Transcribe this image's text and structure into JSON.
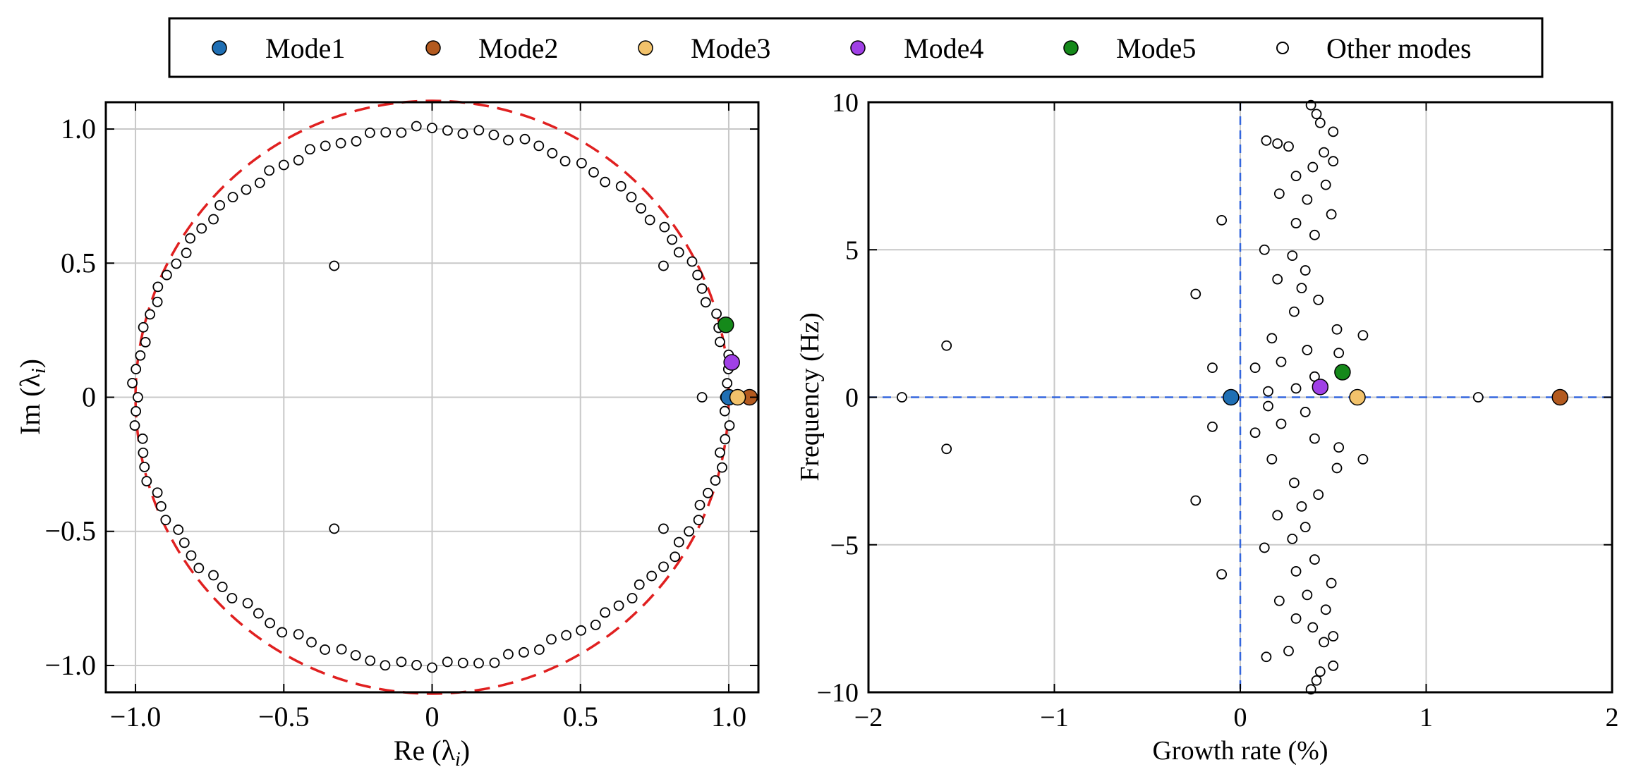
{
  "legend": {
    "items": [
      {
        "label": "Mode1",
        "color": "#1f6fb4"
      },
      {
        "label": "Mode2",
        "color": "#b35a1f"
      },
      {
        "label": "Mode3",
        "color": "#f2c26b"
      },
      {
        "label": "Mode4",
        "color": "#a040e6"
      },
      {
        "label": "Mode5",
        "color": "#15891a"
      },
      {
        "label": "Other modes",
        "color": "#ffffff"
      }
    ]
  },
  "chart_data": [
    {
      "type": "scatter",
      "title": "",
      "xlabel": "Re (λ",
      "xlabel_sub": "i",
      "xlabel_close": ")",
      "ylabel": "Im (λ",
      "ylabel_sub": "i",
      "ylabel_close": ")",
      "xlim": [
        -1.1,
        1.1
      ],
      "ylim": [
        -1.1,
        1.1
      ],
      "xticks": [
        -1.0,
        -0.5,
        0.0,
        0.5,
        1.0
      ],
      "xtick_labels": [
        "−1.0",
        "−0.5",
        "0",
        "0.5",
        "1.0"
      ],
      "yticks": [
        -1.0,
        -0.5,
        0.0,
        0.5,
        1.0
      ],
      "ytick_labels": [
        "−1.0",
        "−0.5",
        "0",
        "0.5",
        "1.0"
      ],
      "grid": true,
      "unit_circle": {
        "radius": 1.0,
        "color": "#e02020",
        "style": "dashed"
      },
      "other_modes_circle_angles_deg": [
        0,
        3,
        6,
        9,
        12,
        15,
        18,
        21,
        24,
        27,
        30,
        33,
        36,
        39,
        42,
        45,
        48,
        51,
        54,
        57,
        60,
        63,
        66,
        69,
        72,
        75,
        78,
        81,
        84,
        87,
        90,
        93,
        96,
        99,
        102,
        105,
        108,
        111,
        114,
        117,
        120,
        123,
        126,
        129,
        132,
        135,
        138,
        141,
        144,
        147,
        150,
        153,
        156,
        159,
        162,
        165,
        168,
        171,
        174,
        177,
        180,
        183,
        186,
        189,
        192,
        195,
        198,
        201,
        204,
        207,
        210,
        213,
        216,
        219,
        222,
        225,
        228,
        231,
        234,
        237,
        240,
        243,
        246,
        249,
        252,
        255,
        258,
        261,
        264,
        267,
        270,
        273,
        276,
        279,
        282,
        285,
        288,
        291,
        294,
        297,
        300,
        303,
        306,
        309,
        312,
        315,
        318,
        321,
        324,
        327,
        330,
        333,
        336,
        339,
        342,
        345,
        348,
        351,
        354,
        357
      ],
      "other_modes_extra": [
        {
          "x": -0.33,
          "y": 0.49
        },
        {
          "x": -0.33,
          "y": -0.49
        },
        {
          "x": 0.78,
          "y": 0.49
        },
        {
          "x": 0.78,
          "y": -0.49
        },
        {
          "x": 0.91,
          "y": 0.0
        }
      ],
      "series": [
        {
          "name": "Mode1",
          "x": [
            1.0
          ],
          "y": [
            0.0
          ]
        },
        {
          "name": "Mode2",
          "x": [
            1.07
          ],
          "y": [
            0.0
          ]
        },
        {
          "name": "Mode3",
          "x": [
            1.03
          ],
          "y": [
            0.0
          ]
        },
        {
          "name": "Mode4",
          "x": [
            1.01
          ],
          "y": [
            0.13
          ]
        },
        {
          "name": "Mode5",
          "x": [
            0.99
          ],
          "y": [
            0.27
          ]
        }
      ]
    },
    {
      "type": "scatter",
      "title": "",
      "xlabel": "Growth rate (%)",
      "ylabel": "Frequency (Hz)",
      "xlim": [
        -2,
        2
      ],
      "ylim": [
        -10,
        10
      ],
      "xticks": [
        -2,
        -1,
        0,
        1,
        2
      ],
      "xtick_labels": [
        "−2",
        "−1",
        "0",
        "1",
        "2"
      ],
      "yticks": [
        -10,
        -5,
        0,
        5,
        10
      ],
      "ytick_labels": [
        "−10",
        "−5",
        "0",
        "5",
        "10"
      ],
      "grid": true,
      "reference_lines": {
        "x": 0,
        "y": 0,
        "color": "#3366dd",
        "style": "dashed"
      },
      "other_modes": [
        {
          "x": -1.82,
          "y": 0.0
        },
        {
          "x": -1.58,
          "y": 1.75
        },
        {
          "x": -1.58,
          "y": -1.75
        },
        {
          "x": -0.24,
          "y": 3.5
        },
        {
          "x": -0.24,
          "y": -3.5
        },
        {
          "x": -0.1,
          "y": 6.0
        },
        {
          "x": -0.1,
          "y": -6.0
        },
        {
          "x": -0.15,
          "y": 1.0
        },
        {
          "x": -0.15,
          "y": -1.0
        },
        {
          "x": 1.28,
          "y": 0.0
        },
        {
          "x": 0.66,
          "y": 2.1
        },
        {
          "x": 0.66,
          "y": -2.1
        },
        {
          "x": 0.38,
          "y": 9.9
        },
        {
          "x": 0.41,
          "y": 9.6
        },
        {
          "x": 0.43,
          "y": 9.3
        },
        {
          "x": 0.5,
          "y": 9.0
        },
        {
          "x": 0.14,
          "y": 8.7
        },
        {
          "x": 0.2,
          "y": 8.6
        },
        {
          "x": 0.26,
          "y": 8.5
        },
        {
          "x": 0.45,
          "y": 8.3
        },
        {
          "x": 0.5,
          "y": 8.0
        },
        {
          "x": 0.39,
          "y": 7.8
        },
        {
          "x": 0.3,
          "y": 7.5
        },
        {
          "x": 0.46,
          "y": 7.2
        },
        {
          "x": 0.21,
          "y": 6.9
        },
        {
          "x": 0.36,
          "y": 6.7
        },
        {
          "x": 0.49,
          "y": 6.2
        },
        {
          "x": 0.3,
          "y": 5.9
        },
        {
          "x": 0.13,
          "y": 5.0
        },
        {
          "x": 0.4,
          "y": 5.5
        },
        {
          "x": 0.28,
          "y": 4.8
        },
        {
          "x": 0.35,
          "y": 4.3
        },
        {
          "x": 0.2,
          "y": 4.0
        },
        {
          "x": 0.33,
          "y": 3.7
        },
        {
          "x": 0.42,
          "y": 3.3
        },
        {
          "x": 0.29,
          "y": 2.9
        },
        {
          "x": 0.52,
          "y": 2.3
        },
        {
          "x": 0.17,
          "y": 2.0
        },
        {
          "x": 0.36,
          "y": 1.6
        },
        {
          "x": 0.53,
          "y": 1.5
        },
        {
          "x": 0.22,
          "y": 1.2
        },
        {
          "x": 0.08,
          "y": 1.0
        },
        {
          "x": 0.4,
          "y": 0.7
        },
        {
          "x": 0.15,
          "y": 0.2
        },
        {
          "x": 0.3,
          "y": 0.3
        },
        {
          "x": 0.15,
          "y": -0.3
        },
        {
          "x": 0.35,
          "y": -0.5
        },
        {
          "x": 0.22,
          "y": -0.9
        },
        {
          "x": 0.08,
          "y": -1.2
        },
        {
          "x": 0.4,
          "y": -1.4
        },
        {
          "x": 0.53,
          "y": -1.7
        },
        {
          "x": 0.17,
          "y": -2.1
        },
        {
          "x": 0.52,
          "y": -2.4
        },
        {
          "x": 0.29,
          "y": -2.9
        },
        {
          "x": 0.42,
          "y": -3.3
        },
        {
          "x": 0.33,
          "y": -3.7
        },
        {
          "x": 0.2,
          "y": -4.0
        },
        {
          "x": 0.35,
          "y": -4.4
        },
        {
          "x": 0.28,
          "y": -4.8
        },
        {
          "x": 0.13,
          "y": -5.1
        },
        {
          "x": 0.4,
          "y": -5.5
        },
        {
          "x": 0.3,
          "y": -5.9
        },
        {
          "x": 0.49,
          "y": -6.3
        },
        {
          "x": 0.36,
          "y": -6.7
        },
        {
          "x": 0.21,
          "y": -6.9
        },
        {
          "x": 0.46,
          "y": -7.2
        },
        {
          "x": 0.3,
          "y": -7.5
        },
        {
          "x": 0.39,
          "y": -7.8
        },
        {
          "x": 0.5,
          "y": -8.1
        },
        {
          "x": 0.45,
          "y": -8.3
        },
        {
          "x": 0.26,
          "y": -8.6
        },
        {
          "x": 0.14,
          "y": -8.8
        },
        {
          "x": 0.5,
          "y": -9.1
        },
        {
          "x": 0.43,
          "y": -9.3
        },
        {
          "x": 0.41,
          "y": -9.6
        },
        {
          "x": 0.38,
          "y": -9.9
        }
      ],
      "series": [
        {
          "name": "Mode1",
          "x": [
            -0.05
          ],
          "y": [
            0.0
          ]
        },
        {
          "name": "Mode2",
          "x": [
            1.72
          ],
          "y": [
            0.0
          ]
        },
        {
          "name": "Mode3",
          "x": [
            0.63
          ],
          "y": [
            0.0
          ]
        },
        {
          "name": "Mode4",
          "x": [
            0.43
          ],
          "y": [
            0.35
          ]
        },
        {
          "name": "Mode5",
          "x": [
            0.55
          ],
          "y": [
            0.85
          ]
        }
      ]
    }
  ]
}
